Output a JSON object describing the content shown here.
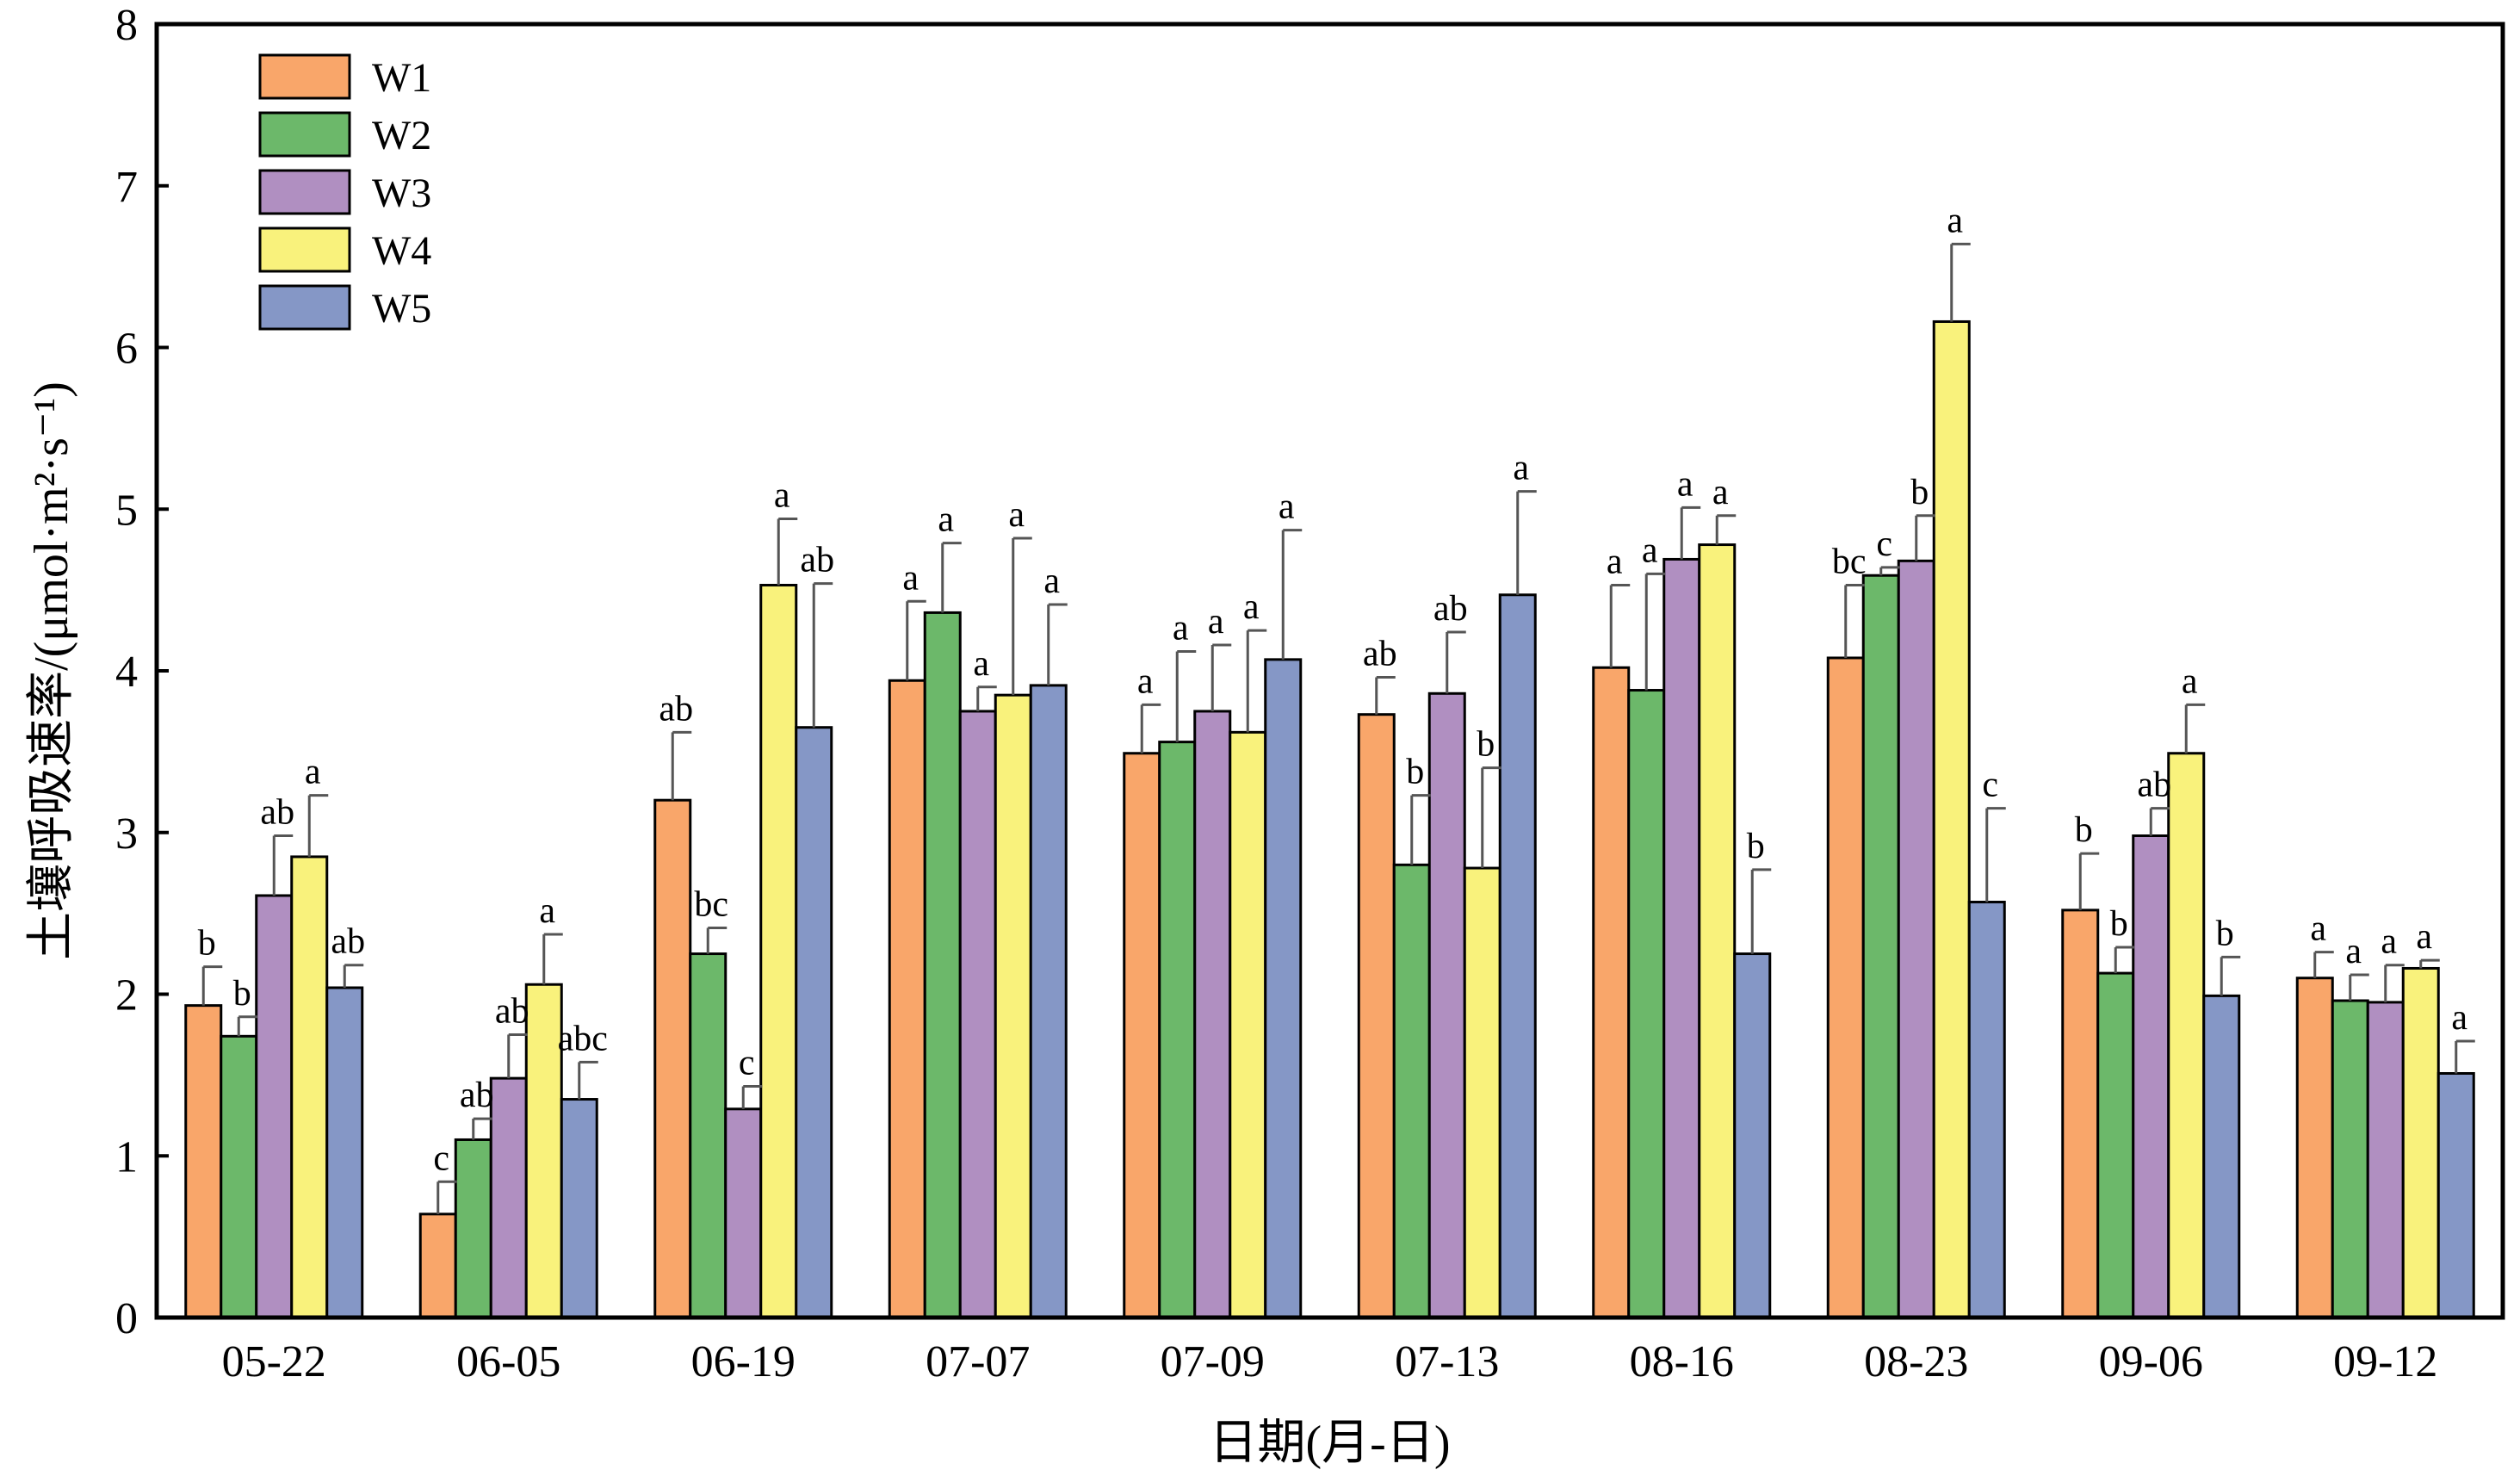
{
  "chart_data": {
    "type": "bar",
    "title": "",
    "xlabel": "日期(月-日)",
    "ylabel": "土壤呼吸速率/(μmol·m²·s⁻¹)",
    "ylim": [
      0,
      8
    ],
    "yticks": [
      "0",
      "1",
      "2",
      "3",
      "4",
      "5",
      "6",
      "7",
      "8"
    ],
    "grid": false,
    "legend_position": "top-left",
    "categories": [
      "05-22",
      "06-05",
      "06-19",
      "07-07",
      "07-09",
      "07-13",
      "08-16",
      "08-23",
      "09-06",
      "09-12"
    ],
    "series": [
      {
        "name": "W1",
        "color": "#F9A66A",
        "values": [
          1.93,
          0.64,
          3.2,
          3.94,
          3.49,
          3.73,
          4.02,
          4.08,
          2.52,
          2.1
        ],
        "errors": [
          0.24,
          0.2,
          0.42,
          0.49,
          0.3,
          0.23,
          0.51,
          0.45,
          0.35,
          0.16
        ],
        "labels": [
          "b",
          "c",
          "ab",
          "a",
          "a",
          "ab",
          "a",
          "bc",
          "b",
          "a"
        ]
      },
      {
        "name": "W2",
        "color": "#6CB86A",
        "values": [
          1.74,
          1.1,
          2.25,
          4.36,
          3.56,
          2.8,
          3.88,
          4.59,
          2.13,
          1.96
        ],
        "errors": [
          0.12,
          0.13,
          0.16,
          0.43,
          0.56,
          0.43,
          0.72,
          0.05,
          0.16,
          0.16
        ],
        "labels": [
          "b",
          "ab",
          "bc",
          "a",
          "a",
          "b",
          "a",
          "c",
          "b",
          "a"
        ]
      },
      {
        "name": "W3",
        "color": "#B08FC1",
        "values": [
          2.61,
          1.48,
          1.29,
          3.75,
          3.75,
          3.86,
          4.69,
          4.68,
          2.98,
          1.95
        ],
        "errors": [
          0.37,
          0.27,
          0.14,
          0.15,
          0.41,
          0.38,
          0.32,
          0.28,
          0.17,
          0.23
        ],
        "labels": [
          "ab",
          "ab",
          "c",
          "a",
          "a",
          "ab",
          "a",
          "b",
          "ab",
          "a"
        ]
      },
      {
        "name": "W4",
        "color": "#F9F27C",
        "values": [
          2.85,
          2.06,
          4.53,
          3.85,
          3.62,
          2.78,
          4.78,
          6.16,
          3.49,
          2.16
        ],
        "errors": [
          0.38,
          0.31,
          0.41,
          0.97,
          0.63,
          0.62,
          0.18,
          0.48,
          0.3,
          0.05
        ],
        "labels": [
          "a",
          "a",
          "a",
          "a",
          "a",
          "b",
          "a",
          "a",
          "a",
          "a"
        ]
      },
      {
        "name": "W5",
        "color": "#8597C6",
        "values": [
          2.04,
          1.35,
          3.65,
          3.91,
          4.07,
          4.47,
          2.25,
          2.57,
          1.99,
          1.51
        ],
        "errors": [
          0.14,
          0.23,
          0.89,
          0.5,
          0.8,
          0.64,
          0.52,
          0.58,
          0.24,
          0.2
        ],
        "labels": [
          "ab",
          "abc",
          "ab",
          "a",
          "a",
          "a",
          "b",
          "c",
          "b",
          "a"
        ]
      }
    ]
  }
}
